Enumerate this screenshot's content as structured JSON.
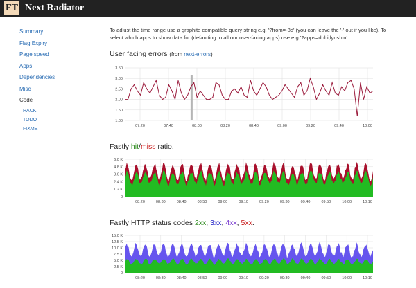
{
  "app": {
    "logo": "FT",
    "title": "Next Radiator"
  },
  "sidebar": {
    "items": [
      "Summary",
      "Flag Expiry",
      "Page speed",
      "Apps",
      "Dependencies",
      "Misc",
      "Code"
    ],
    "code_children": [
      "HACK",
      "TODO",
      "FIXME"
    ]
  },
  "intro": "To adjust the time range use a graphite compatible query string e.g. '?from=-8d' (you can leave the '-' out if you like). To select which apps to show data for (defaulting to all our user-facing apps) use e.g '?apps=dobi,lyushin'",
  "sections": {
    "errors": {
      "title": "User facing errors",
      "from_prefix": "(from ",
      "link": "next-errors",
      "from_suffix": ")"
    },
    "fastly": {
      "prefix": "Fastly ",
      "hit": "hit",
      "sep": "/",
      "miss": "miss",
      "suffix": " ratio."
    },
    "status": {
      "prefix": "Fastly HTTP status codes ",
      "c2xx": "2xx",
      "c3xx": "3xx",
      "c4xx": "4xx",
      "c5xx": "5xx",
      "sep1": ", ",
      "sep2": ", ",
      "sep3": ", ",
      "end": "."
    }
  },
  "colors": {
    "errors_line": "#9b1b3c",
    "hit": "#22bb22",
    "miss": "#a8102c",
    "s2xx": "#22bb22",
    "s3xx": "#6655ee",
    "grid": "#dddddd"
  },
  "chart_data": [
    {
      "type": "line",
      "name": "user-facing-errors",
      "y_ticks": [
        "3.50",
        "3.00",
        "2.50",
        "2.00",
        "1.50",
        "1.00"
      ],
      "ylim": [
        1.0,
        3.5
      ],
      "x_ticks": [
        "07:20",
        "07:40",
        "08:00",
        "08:20",
        "08:40",
        "09:00",
        "09:20",
        "09:40",
        "10:00"
      ],
      "x_range": [
        "07:10",
        "10:15"
      ],
      "values": [
        2.0,
        2.0,
        2.5,
        2.7,
        2.4,
        2.2,
        2.8,
        2.5,
        2.3,
        2.6,
        2.9,
        2.2,
        2.0,
        2.1,
        2.7,
        2.4,
        2.0,
        2.9,
        2.3,
        2.0,
        2.2,
        2.6,
        2.8,
        2.1,
        2.4,
        2.2,
        2.0,
        2.0,
        2.1,
        2.8,
        2.7,
        2.2,
        2.0,
        2.0,
        2.4,
        2.5,
        2.3,
        2.6,
        2.2,
        2.1,
        2.9,
        2.4,
        2.2,
        2.5,
        2.8,
        2.6,
        2.2,
        2.0,
        2.1,
        2.2,
        2.4,
        2.7,
        2.5,
        2.3,
        2.1,
        2.6,
        2.8,
        2.2,
        2.4,
        3.0,
        2.6,
        2.0,
        2.3,
        2.7,
        2.4,
        2.2,
        2.8,
        2.3,
        2.2,
        2.6,
        2.4,
        2.8,
        2.9,
        2.5,
        1.2,
        2.8,
        2.0,
        2.6,
        2.3,
        2.4
      ],
      "marker_at": "07:50"
    },
    {
      "type": "area",
      "name": "fastly-hit-miss-ratio",
      "y_ticks": [
        "6.0 K",
        "4.8 K",
        "3.6 K",
        "2.4 K",
        "1.2 K",
        "0"
      ],
      "ylim": [
        0,
        6000
      ],
      "x_ticks": [
        "08:20",
        "08:30",
        "08:40",
        "08:50",
        "09:00",
        "09:10",
        "09:20",
        "09:30",
        "09:40",
        "09:50",
        "10:00",
        "10:10"
      ],
      "series": [
        {
          "name": "hit",
          "low": 2000,
          "high": 4000
        },
        {
          "name": "miss",
          "low": 700,
          "high": 1300
        }
      ],
      "cycles": 27
    },
    {
      "type": "area",
      "name": "fastly-http-status-codes",
      "y_ticks": [
        "15.0 K",
        "12.5 K",
        "10.0 K",
        "7.5 K",
        "5.0 K",
        "2.5 K",
        "0"
      ],
      "ylim": [
        0,
        15000
      ],
      "x_ticks": [
        "08:20",
        "08:30",
        "08:40",
        "08:50",
        "09:00",
        "09:10",
        "09:20",
        "09:30",
        "09:40",
        "09:50",
        "10:00",
        "10:10"
      ],
      "series": [
        {
          "name": "2xx",
          "low": 3500,
          "high": 5500
        },
        {
          "name": "3xx",
          "low": 3000,
          "high": 6000
        }
      ],
      "cycles": 27
    }
  ]
}
